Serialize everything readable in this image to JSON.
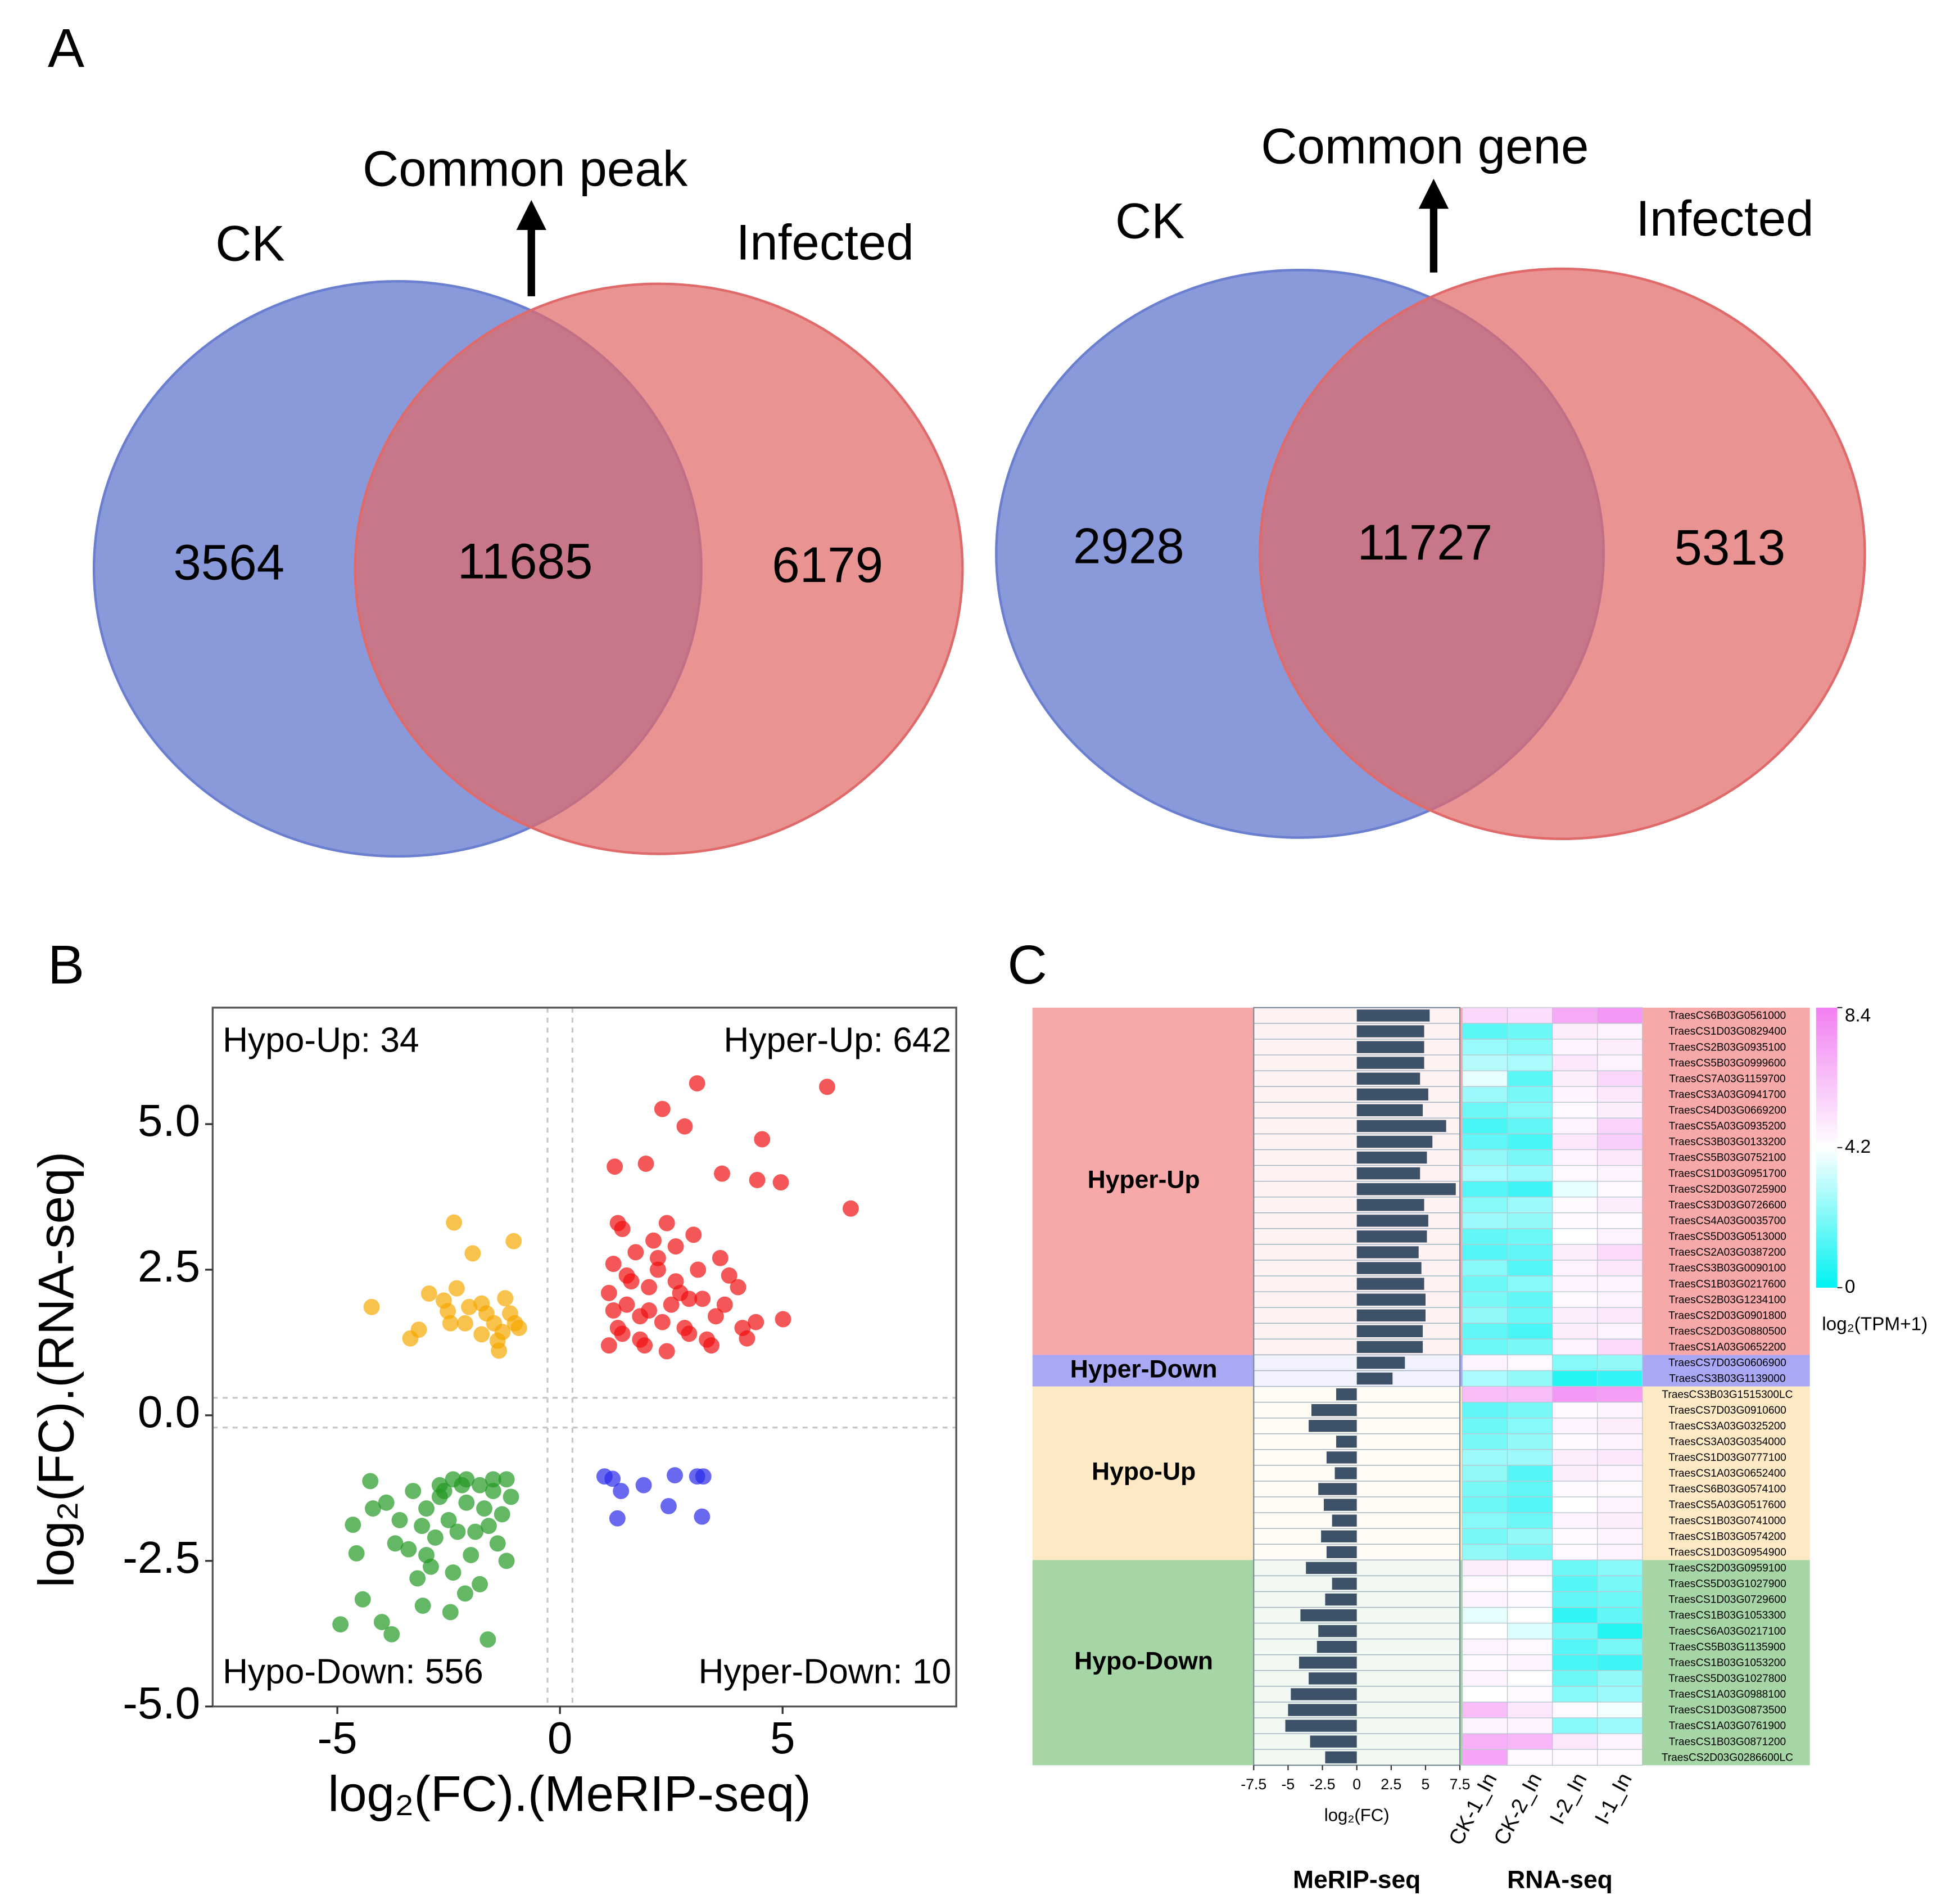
{
  "panels": [
    "A",
    "B",
    "C"
  ],
  "chart_data": [
    {
      "type": "venn",
      "title": "Common peak",
      "sets": [
        {
          "name": "CK",
          "color": "#6b7fd0",
          "value": 3564
        },
        {
          "name": "Infected",
          "color": "#e06a6a",
          "value": 6179
        }
      ],
      "overlap": 11685
    },
    {
      "type": "venn",
      "title": "Common gene",
      "sets": [
        {
          "name": "CK",
          "color": "#6b7fd0",
          "value": 2928
        },
        {
          "name": "Infected",
          "color": "#e06a6a",
          "value": 5313
        }
      ],
      "overlap": 11727
    },
    {
      "type": "scatter",
      "xlabel": "log₂(FC).(MeRIP-seq)",
      "ylabel": "log₂(FC).(RNA-seq)",
      "xlim": [
        -7.8,
        8.9
      ],
      "ylim": [
        -5,
        7
      ],
      "xticks": [
        -5,
        0,
        5
      ],
      "yticks": [
        {
          "value": -5,
          "label": "-5.0"
        },
        -2.5,
        {
          "value": 0,
          "label": "0.0"
        },
        2.5,
        {
          "value": 5,
          "label": "5.0"
        }
      ],
      "vlines": [
        -0.28,
        0.28
      ],
      "hlines": [
        0.3,
        -0.21
      ],
      "series": [
        {
          "label": "Hyper-Up: 642",
          "label_corner": "top-right",
          "color": "#f01010",
          "x": [
            1.1,
            1.3,
            1.5,
            1.2,
            1.8,
            2.0,
            2.3,
            2.6,
            2.9,
            3.2,
            3.5,
            3.8,
            4.1,
            4.4,
            1.4,
            1.7,
            2.1,
            2.4,
            2.7,
            3.0,
            3.3,
            3.6,
            1.2,
            1.6,
            1.9,
            2.2,
            2.5,
            2.8,
            3.1,
            1.3,
            1.5,
            2.0,
            2.6,
            3.4,
            1.1,
            1.8,
            2.2,
            2.9,
            3.7,
            4.0,
            1.4,
            2.4,
            3.08,
            6.0,
            6.53,
            2.3,
            2.8,
            1.23,
            4.54,
            4.96,
            4.43,
            1.93,
            3.64,
            4.2,
            5.01
          ],
          "y": [
            1.2,
            1.5,
            1.9,
            2.6,
            1.3,
            2.2,
            1.6,
            2.9,
            1.4,
            2.0,
            1.7,
            2.4,
            1.5,
            1.6,
            3.2,
            2.8,
            3.0,
            1.1,
            2.1,
            3.1,
            1.3,
            2.7,
            1.8,
            2.3,
            1.2,
            2.7,
            1.9,
            1.5,
            2.5,
            3.3,
            2.4,
            1.8,
            2.3,
            1.2,
            2.1,
            1.7,
            2.5,
            2.0,
            1.9,
            2.2,
            1.4,
            3.3,
            5.7,
            5.64,
            3.55,
            5.26,
            4.96,
            4.27,
            4.74,
            4.0,
            4.04,
            4.32,
            4.15,
            1.32,
            1.65
          ]
        },
        {
          "label": "Hypo-Up: 34",
          "label_corner": "top-left",
          "color": "#f5a800",
          "x": [
            -4.23,
            -3.36,
            -3.17,
            -2.38,
            -1.96,
            -1.04,
            -2.94,
            -2.61,
            -2.52,
            -2.46,
            -2.13,
            -1.76,
            -1.65,
            -1.48,
            -1.29,
            -1.23,
            -1.12,
            -1.01,
            -0.92,
            -1.4,
            -1.37,
            -1.76,
            -2.04,
            -2.32
          ],
          "y": [
            1.86,
            1.32,
            1.47,
            3.31,
            2.78,
            2.99,
            2.09,
            1.97,
            1.79,
            1.58,
            1.58,
            1.92,
            1.75,
            1.58,
            1.43,
            2.01,
            1.75,
            1.58,
            1.5,
            1.28,
            1.11,
            1.39,
            1.86,
            2.18
          ]
        },
        {
          "label": "Hypo-Down: 556",
          "label_corner": "bottom-left",
          "color": "#229922",
          "x": [
            -1.2,
            -1.5,
            -1.8,
            -2.1,
            -2.4,
            -2.7,
            -3.0,
            -3.3,
            -3.6,
            -3.9,
            -1.3,
            -1.6,
            -1.9,
            -2.2,
            -2.5,
            -2.8,
            -3.1,
            -3.4,
            -1.1,
            -1.4,
            -1.7,
            -2.0,
            -2.3,
            -2.6,
            -2.9,
            -3.2,
            -3.7,
            -1.2,
            -1.8,
            -2.4,
            -3.0,
            -4.2,
            -1.5,
            -2.1,
            -2.7,
            -4.93,
            -3.78,
            -1.62,
            -4.0,
            -4.43,
            -4.57,
            -3.08,
            -2.46,
            -2.13,
            -4.65,
            -4.26
          ],
          "y": [
            -1.1,
            -1.3,
            -1.2,
            -1.5,
            -1.1,
            -1.4,
            -1.6,
            -1.3,
            -1.8,
            -1.5,
            -1.7,
            -1.9,
            -2.0,
            -1.2,
            -1.8,
            -2.1,
            -1.9,
            -2.3,
            -1.4,
            -2.2,
            -1.6,
            -2.4,
            -2.0,
            -1.3,
            -2.6,
            -2.8,
            -2.2,
            -2.5,
            -2.9,
            -2.7,
            -2.4,
            -1.6,
            -1.1,
            -1.1,
            -1.2,
            -3.59,
            -3.76,
            -3.85,
            -3.55,
            -3.16,
            -2.37,
            -3.27,
            -3.38,
            -3.06,
            -1.88,
            -1.13
          ]
        },
        {
          "label": "Hyper-Down: 10",
          "label_corner": "bottom-right",
          "color": "#2a2ae8",
          "x": [
            1.18,
            1.37,
            1.29,
            1.88,
            2.58,
            2.44,
            3.08,
            3.22,
            3.19,
            1.0
          ],
          "y": [
            -1.09,
            -1.3,
            -1.77,
            -1.2,
            -1.03,
            -1.56,
            -1.05,
            -1.05,
            -1.74,
            -1.05
          ]
        }
      ]
    },
    {
      "type": "heatmap",
      "bar_xlabel": "log₂(FC)",
      "bar_xlim": [
        -7.5,
        7.5
      ],
      "bar_xticks": [
        -7.5,
        -5,
        -2.5,
        0,
        2.5,
        5,
        7.5
      ],
      "bar_color": "#3d5168",
      "bar_group": "MeRIP-seq",
      "column_group": "RNA-seq",
      "columns": [
        "CK-1_In",
        "CK-2_In",
        "I-2_In",
        "I-1_In"
      ],
      "colorbar_label": "log₂(TPM+1)",
      "clim": [
        0,
        8.4
      ],
      "cticks": [
        0,
        4.2,
        8.4
      ],
      "colormap": [
        "#00f2f2",
        "#ffffff",
        "#f27ff2"
      ],
      "groups": [
        {
          "name": "Hyper-Up",
          "color": "#f7a8a8",
          "genes": [
            "TraesCS6B03G0561000",
            "TraesCS1D03G0829400",
            "TraesCS2B03G0935100",
            "TraesCS5B03G0999600",
            "TraesCS7A03G1159700",
            "TraesCS3A03G0941700",
            "TraesCS4D03G0669200",
            "TraesCS5A03G0935200",
            "TraesCS3B03G0133200",
            "TraesCS5B03G0752100",
            "TraesCS1D03G0951700",
            "TraesCS2D03G0725900",
            "TraesCS3D03G0726600",
            "TraesCS4A03G0035700",
            "TraesCS5D03G0513000",
            "TraesCS2A03G0387200",
            "TraesCS3B03G0090100",
            "TraesCS1B03G0217600",
            "TraesCS2B03G1234100",
            "TraesCS2D03G0901800",
            "TraesCS2D03G0880500",
            "TraesCS1A03G0652200"
          ],
          "log2fc": [
            5.3,
            4.9,
            4.9,
            4.9,
            4.6,
            5.2,
            4.8,
            6.5,
            5.5,
            5.1,
            4.6,
            7.2,
            4.9,
            5.2,
            5.1,
            4.5,
            4.7,
            4.9,
            5.0,
            5.0,
            4.8,
            4.8
          ],
          "tpm": [
            [
              5.5,
              5.3,
              7.0,
              7.6
            ],
            [
              1.5,
              1.8,
              4.8,
              4.6
            ],
            [
              2.5,
              2.2,
              4.6,
              4.8
            ],
            [
              3.0,
              2.8,
              5.0,
              4.6
            ],
            [
              3.8,
              1.5,
              4.8,
              5.5
            ],
            [
              2.6,
              2.0,
              4.6,
              5.0
            ],
            [
              1.8,
              2.2,
              4.4,
              4.8
            ],
            [
              1.2,
              1.6,
              4.6,
              5.6
            ],
            [
              1.6,
              1.2,
              5.0,
              5.8
            ],
            [
              2.4,
              2.0,
              4.6,
              5.0
            ],
            [
              2.8,
              2.6,
              4.4,
              4.6
            ],
            [
              1.4,
              1.0,
              3.8,
              4.4
            ],
            [
              2.2,
              2.6,
              4.4,
              4.8
            ],
            [
              2.6,
              2.4,
              4.4,
              4.4
            ],
            [
              1.6,
              1.8,
              4.2,
              4.6
            ],
            [
              1.4,
              1.6,
              4.8,
              5.4
            ],
            [
              2.2,
              1.4,
              4.6,
              5.0
            ],
            [
              1.8,
              2.2,
              4.6,
              4.6
            ],
            [
              2.0,
              1.6,
              4.4,
              4.6
            ],
            [
              2.4,
              1.8,
              4.8,
              5.0
            ],
            [
              1.6,
              1.2,
              4.8,
              4.6
            ],
            [
              1.8,
              2.0,
              4.6,
              5.4
            ]
          ]
        },
        {
          "name": "Hyper-Down",
          "color": "#a8a8f5",
          "genes": [
            "TraesCS7D03G0606900",
            "TraesCS3B03G1139000"
          ],
          "log2fc": [
            3.5,
            2.6
          ],
          "tpm": [
            [
              4.6,
              4.4,
              2.2,
              2.4
            ],
            [
              2.8,
              2.4,
              0.6,
              0.8
            ]
          ]
        },
        {
          "name": "Hypo-Up",
          "color": "#fde9c4",
          "genes": [
            "TraesCS3B03G1515300LC",
            "TraesCS7D03G0910600",
            "TraesCS3A03G0325200",
            "TraesCS3A03G0354000",
            "TraesCS1D03G0777100",
            "TraesCS1A03G0652400",
            "TraesCS6B03G0574100",
            "TraesCS5A03G0517600",
            "TraesCS1B03G0741000",
            "TraesCS1B03G0574200",
            "TraesCS1D03G0954900"
          ],
          "log2fc": [
            -1.5,
            -3.3,
            -3.5,
            -1.5,
            -2.2,
            -1.6,
            -2.8,
            -2.4,
            -1.8,
            -2.6,
            -2.2
          ],
          "tpm": [
            [
              6.4,
              6.4,
              7.6,
              7.4
            ],
            [
              1.6,
              2.0,
              4.4,
              4.6
            ],
            [
              1.8,
              2.2,
              4.6,
              4.8
            ],
            [
              2.0,
              2.4,
              4.4,
              4.6
            ],
            [
              2.6,
              2.6,
              4.8,
              5.0
            ],
            [
              2.4,
              1.4,
              4.8,
              4.6
            ],
            [
              2.0,
              1.6,
              4.4,
              4.4
            ],
            [
              1.8,
              1.4,
              4.2,
              4.6
            ],
            [
              2.2,
              1.8,
              4.6,
              4.8
            ],
            [
              2.0,
              2.4,
              4.4,
              4.6
            ],
            [
              2.4,
              2.0,
              4.4,
              4.6
            ]
          ]
        },
        {
          "name": "Hypo-Down",
          "color": "#a6d6a6",
          "genes": [
            "TraesCS2D03G0959100",
            "TraesCS5D03G1027900",
            "TraesCS1D03G0729600",
            "TraesCS1B03G1053300",
            "TraesCS6A03G0217100",
            "TraesCS5B03G1135900",
            "TraesCS1B03G1053200",
            "TraesCS5D03G1027800",
            "TraesCS1A03G0988100",
            "TraesCS1D03G0873500",
            "TraesCS1A03G0761900",
            "TraesCS1B03G0871200",
            "TraesCS2D03G0286600LC"
          ],
          "log2fc": [
            -3.7,
            -1.8,
            -2.3,
            -4.1,
            -2.8,
            -2.9,
            -4.2,
            -3.5,
            -4.8,
            -5.0,
            -5.2,
            -3.4,
            -2.3
          ],
          "tpm": [
            [
              4.8,
              4.6,
              1.8,
              2.2
            ],
            [
              4.4,
              4.2,
              1.4,
              2.0
            ],
            [
              4.6,
              4.4,
              1.6,
              1.8
            ],
            [
              3.8,
              4.2,
              0.8,
              1.6
            ],
            [
              4.2,
              3.6,
              1.8,
              0.6
            ],
            [
              4.6,
              4.4,
              1.4,
              2.0
            ],
            [
              4.4,
              4.6,
              1.2,
              1.0
            ],
            [
              4.6,
              4.2,
              1.8,
              2.4
            ],
            [
              4.2,
              4.4,
              2.2,
              2.6
            ],
            [
              6.4,
              5.0,
              4.4,
              4.0
            ],
            [
              4.6,
              4.6,
              2.2,
              2.6
            ],
            [
              6.8,
              6.6,
              5.0,
              4.6
            ],
            [
              7.2,
              4.4,
              4.4,
              4.4
            ]
          ]
        }
      ]
    }
  ]
}
